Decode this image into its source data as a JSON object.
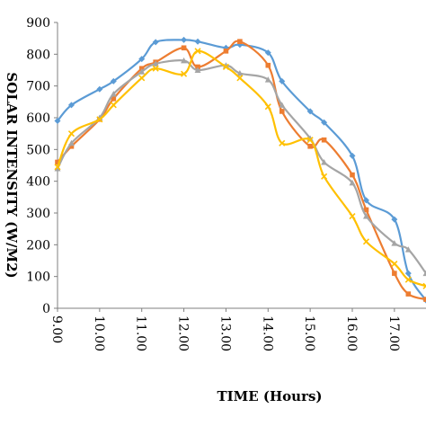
{
  "chart_data": {
    "type": "line",
    "xlabel": "TIME (Hours)",
    "ylabel": "SOLAR INTENSITY (W/M2)",
    "xlim": [
      9.0,
      17.75
    ],
    "ylim": [
      0,
      900
    ],
    "yticks": [
      0,
      100,
      200,
      300,
      400,
      500,
      600,
      700,
      800,
      900
    ],
    "xticks": [
      "9.00",
      "10.00",
      "11.00",
      "12.00",
      "13.00",
      "14.00",
      "15.00",
      "16.00",
      "17.00"
    ],
    "xtick_values": [
      9,
      10,
      11,
      12,
      13,
      14,
      15,
      16,
      17
    ],
    "grid": false,
    "legend": "none",
    "series": [
      {
        "color": "#5B9BD5",
        "marker": "diamond",
        "x": [
          9.0,
          9.33,
          10.0,
          10.33,
          11.0,
          11.33,
          12.0,
          12.33,
          13.0,
          13.33,
          14.0,
          14.33,
          15.0,
          15.33,
          16.0,
          16.33,
          17.0,
          17.33,
          17.75
        ],
        "y": [
          590,
          640,
          690,
          715,
          785,
          838,
          845,
          840,
          820,
          830,
          805,
          715,
          620,
          585,
          480,
          340,
          280,
          110,
          25
        ]
      },
      {
        "color": "#ED7D31",
        "marker": "square",
        "x": [
          9.0,
          9.33,
          10.0,
          10.33,
          11.0,
          11.33,
          12.0,
          12.33,
          13.0,
          13.33,
          14.0,
          14.33,
          15.0,
          15.33,
          16.0,
          16.33,
          17.0,
          17.33,
          17.75
        ],
        "y": [
          460,
          510,
          595,
          660,
          755,
          775,
          820,
          760,
          810,
          840,
          765,
          620,
          510,
          530,
          420,
          310,
          110,
          45,
          28
        ]
      },
      {
        "color": "#A5A5A5",
        "marker": "triangle",
        "x": [
          9.0,
          9.33,
          10.0,
          10.33,
          11.0,
          11.33,
          12.0,
          12.33,
          13.0,
          13.33,
          14.0,
          14.33,
          15.0,
          15.33,
          16.0,
          16.33,
          17.0,
          17.33,
          17.75
        ],
        "y": [
          440,
          520,
          600,
          675,
          745,
          770,
          780,
          750,
          765,
          740,
          720,
          640,
          535,
          460,
          395,
          290,
          205,
          185,
          110
        ]
      },
      {
        "color": "#FFC000",
        "marker": "x",
        "x": [
          9.0,
          9.33,
          10.0,
          10.33,
          11.0,
          11.33,
          12.0,
          12.33,
          13.0,
          13.33,
          14.0,
          14.33,
          15.0,
          15.33,
          16.0,
          16.33,
          17.0,
          17.33,
          17.75
        ],
        "y": [
          445,
          550,
          595,
          640,
          725,
          755,
          738,
          810,
          760,
          725,
          635,
          520,
          530,
          415,
          290,
          210,
          140,
          90,
          70
        ]
      }
    ]
  }
}
